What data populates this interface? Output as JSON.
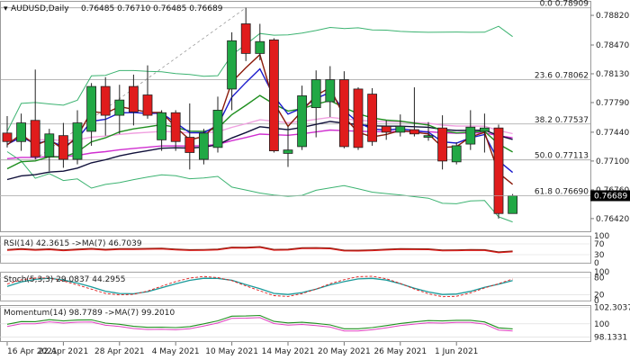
{
  "header": {
    "symbol": "AUDUSD,Daily",
    "ohlc": "0.76485 0.76710 0.76485 0.76689"
  },
  "price_axis": {
    "ticks": [
      "0.78820",
      "0.78470",
      "0.78130",
      "0.77790",
      "0.77440",
      "0.77100",
      "0.76760",
      "0.76420"
    ],
    "current_label": "0.76689"
  },
  "date_axis": {
    "labels": [
      "16 Apr 2021",
      "22 Apr 2021",
      "28 Apr 2021",
      "4 May 2021",
      "10 May 2021",
      "14 May 2021",
      "20 May 2021",
      "26 May 2021",
      "1 Jun 2021"
    ]
  },
  "fib_levels": [
    {
      "label": "0.0 0.78909",
      "price": 0.78909
    },
    {
      "label": "23.6 0.78062",
      "price": 0.78062
    },
    {
      "label": "38.2 0.77537",
      "price": 0.77537
    },
    {
      "label": "50.0 0.77113",
      "price": 0.77113
    },
    {
      "label": "61.8 0.76690",
      "price": 0.7669
    }
  ],
  "rsi_panel": {
    "label": "RSI(14) 42.3615  ->MA(7) 46.7039",
    "ticks": [
      "100",
      "70",
      "30",
      "0"
    ]
  },
  "stoch_panel": {
    "label": "Stoch(5,3,3) 29.0837 44.2955",
    "ticks": [
      "100",
      "80",
      "20",
      "0"
    ]
  },
  "momentum_panel": {
    "label": "Momentum(14) 98.7789  ->MA(7) 99.2010",
    "ticks": [
      "102.3037",
      "100",
      "98.1331"
    ]
  },
  "colors": {
    "bull": "#21a845",
    "bear": "#e01c1c",
    "ma_blue": "#1a1acc",
    "ma_brown": "#8b1a0a",
    "ma_green": "#1f8f1f",
    "bb": "#3cb371",
    "ma_magenta": "#d02fd0",
    "ma_pink": "#f0a0e0",
    "ma_navy": "#10103a"
  },
  "chart_data": {
    "type": "candlestick",
    "title": "AUDUSD,Daily",
    "ylim": [
      0.7627,
      0.7898
    ],
    "candles": [
      {
        "o": 0.7743,
        "h": 0.7763,
        "l": 0.7726,
        "c": 0.7733
      },
      {
        "o": 0.7733,
        "h": 0.7766,
        "l": 0.7722,
        "c": 0.7755
      },
      {
        "o": 0.7758,
        "h": 0.7818,
        "l": 0.7712,
        "c": 0.7715
      },
      {
        "o": 0.7715,
        "h": 0.7748,
        "l": 0.7698,
        "c": 0.7742
      },
      {
        "o": 0.774,
        "h": 0.7755,
        "l": 0.7702,
        "c": 0.7712
      },
      {
        "o": 0.7712,
        "h": 0.777,
        "l": 0.7706,
        "c": 0.7755
      },
      {
        "o": 0.7745,
        "h": 0.7802,
        "l": 0.7728,
        "c": 0.7798
      },
      {
        "o": 0.7798,
        "h": 0.7809,
        "l": 0.774,
        "c": 0.7764
      },
      {
        "o": 0.7764,
        "h": 0.78,
        "l": 0.7742,
        "c": 0.7782
      },
      {
        "o": 0.7798,
        "h": 0.7812,
        "l": 0.7752,
        "c": 0.7768
      },
      {
        "o": 0.7788,
        "h": 0.7823,
        "l": 0.776,
        "c": 0.7764
      },
      {
        "o": 0.7735,
        "h": 0.777,
        "l": 0.7722,
        "c": 0.7767
      },
      {
        "o": 0.7767,
        "h": 0.777,
        "l": 0.7722,
        "c": 0.7733
      },
      {
        "o": 0.7738,
        "h": 0.7778,
        "l": 0.77,
        "c": 0.772
      },
      {
        "o": 0.7712,
        "h": 0.7748,
        "l": 0.7706,
        "c": 0.7743
      },
      {
        "o": 0.7726,
        "h": 0.7786,
        "l": 0.772,
        "c": 0.777
      },
      {
        "o": 0.7795,
        "h": 0.7862,
        "l": 0.777,
        "c": 0.7852
      },
      {
        "o": 0.7872,
        "h": 0.7891,
        "l": 0.7828,
        "c": 0.7837
      },
      {
        "o": 0.7837,
        "h": 0.7872,
        "l": 0.7829,
        "c": 0.7851
      },
      {
        "o": 0.7853,
        "h": 0.7855,
        "l": 0.772,
        "c": 0.7722
      },
      {
        "o": 0.7719,
        "h": 0.7751,
        "l": 0.7703,
        "c": 0.7723
      },
      {
        "o": 0.7727,
        "h": 0.7799,
        "l": 0.7723,
        "c": 0.7787
      },
      {
        "o": 0.7773,
        "h": 0.7817,
        "l": 0.7738,
        "c": 0.7806
      },
      {
        "o": 0.778,
        "h": 0.7822,
        "l": 0.7762,
        "c": 0.7806
      },
      {
        "o": 0.7806,
        "h": 0.7816,
        "l": 0.7725,
        "c": 0.7727
      },
      {
        "o": 0.7795,
        "h": 0.7797,
        "l": 0.7723,
        "c": 0.7726
      },
      {
        "o": 0.7789,
        "h": 0.7796,
        "l": 0.7728,
        "c": 0.7733
      },
      {
        "o": 0.7751,
        "h": 0.7758,
        "l": 0.7735,
        "c": 0.7744
      },
      {
        "o": 0.7744,
        "h": 0.7765,
        "l": 0.7739,
        "c": 0.7751
      },
      {
        "o": 0.7747,
        "h": 0.7797,
        "l": 0.7739,
        "c": 0.7742
      },
      {
        "o": 0.7738,
        "h": 0.7756,
        "l": 0.7734,
        "c": 0.774
      },
      {
        "o": 0.7749,
        "h": 0.7764,
        "l": 0.77,
        "c": 0.771
      },
      {
        "o": 0.7709,
        "h": 0.7732,
        "l": 0.7706,
        "c": 0.7728
      },
      {
        "o": 0.773,
        "h": 0.777,
        "l": 0.7723,
        "c": 0.775
      },
      {
        "o": 0.7745,
        "h": 0.7766,
        "l": 0.772,
        "c": 0.7749
      },
      {
        "o": 0.7749,
        "h": 0.7753,
        "l": 0.7642,
        "c": 0.7648
      },
      {
        "o": 0.7648,
        "h": 0.7671,
        "l": 0.7648,
        "c": 0.7669
      }
    ]
  }
}
